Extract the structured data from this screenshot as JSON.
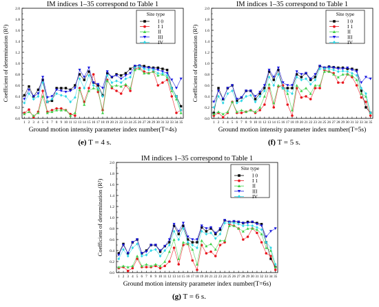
{
  "figure": {
    "panels": [
      {
        "id": "e",
        "caption_label": "(e)",
        "caption_text": "T = 4 s."
      },
      {
        "id": "f",
        "caption_label": "(f)",
        "caption_text": "T = 5 s."
      },
      {
        "id": "g",
        "caption_label": "(g)",
        "caption_text": "T = 6 s."
      }
    ]
  },
  "colors": {
    "I0": "#000000",
    "I1": "#e8141c",
    "II": "#3fd14a",
    "III": "#1414e0",
    "IV": "#2fd8e6"
  },
  "chart_data": [
    {
      "type": "line",
      "title": "IM indices 1–35 correspond to Table 1",
      "xlabel": "Ground motion intensity parameter index number(T=4s)",
      "ylabel": "Coefficient of determination (R²)",
      "xlim": [
        0.5,
        35.5
      ],
      "ylim": [
        0.0,
        2.0
      ],
      "x": [
        1,
        2,
        3,
        4,
        5,
        6,
        7,
        8,
        9,
        10,
        11,
        12,
        13,
        14,
        15,
        16,
        17,
        18,
        19,
        20,
        21,
        22,
        23,
        24,
        25,
        26,
        27,
        28,
        29,
        30,
        31,
        32,
        33,
        34,
        35
      ],
      "x_tick_labels": [
        "1",
        "2",
        "3",
        "4",
        "5",
        "6",
        "7",
        "8",
        "9",
        "10",
        "11",
        "12",
        "13",
        "14",
        "15",
        "16",
        "17",
        "18",
        "19",
        "20",
        "21",
        "22",
        "23",
        "24",
        "25",
        "26",
        "27",
        "28",
        "29",
        "30",
        "31",
        "32",
        "33",
        "34",
        "35"
      ],
      "y_ticks": [
        "0.0",
        "0.2",
        "0.4",
        "0.6",
        "0.8",
        "1.0",
        "1.2",
        "1.4",
        "1.6",
        "1.8",
        "2.0"
      ],
      "legend": {
        "title": "Site type",
        "position": "top-right"
      },
      "series": [
        {
          "name": "I 0",
          "color": "#000000",
          "marker": "square",
          "values": [
            0.42,
            0.58,
            0.4,
            0.52,
            0.7,
            0.3,
            0.32,
            0.55,
            0.55,
            0.55,
            0.52,
            0.6,
            0.8,
            0.7,
            0.85,
            0.65,
            0.6,
            0.42,
            0.82,
            0.75,
            0.8,
            0.78,
            0.82,
            0.9,
            0.95,
            0.96,
            0.95,
            0.93,
            0.92,
            0.92,
            0.9,
            0.88,
            0.55,
            0.4,
            0.22
          ]
        },
        {
          "name": "I 1",
          "color": "#e8141c",
          "marker": "circle",
          "values": [
            0.1,
            0.16,
            0.02,
            0.12,
            0.5,
            0.12,
            0.15,
            0.18,
            0.18,
            0.15,
            0.08,
            0.05,
            0.55,
            0.3,
            0.55,
            0.8,
            0.48,
            0.15,
            0.7,
            0.55,
            0.5,
            0.45,
            0.6,
            0.5,
            0.9,
            0.92,
            0.85,
            0.82,
            0.85,
            0.6,
            0.65,
            0.7,
            0.4,
            0.1,
            0.15
          ]
        },
        {
          "name": "II",
          "color": "#3fd14a",
          "marker": "triangle-up",
          "values": [
            0.08,
            0.12,
            0.05,
            0.1,
            0.4,
            0.1,
            0.12,
            0.15,
            0.15,
            0.15,
            0.05,
            0.1,
            0.52,
            0.25,
            0.5,
            0.55,
            0.52,
            0.1,
            0.68,
            0.58,
            0.6,
            0.58,
            0.62,
            0.55,
            0.88,
            0.9,
            0.82,
            0.82,
            0.85,
            0.78,
            0.8,
            0.75,
            0.5,
            0.35,
            0.1
          ]
        },
        {
          "name": "III",
          "color": "#1414e0",
          "marker": "triangle-down",
          "values": [
            0.35,
            0.52,
            0.4,
            0.45,
            0.75,
            0.38,
            0.4,
            0.52,
            0.5,
            0.48,
            0.5,
            0.55,
            0.88,
            0.75,
            0.92,
            0.65,
            0.62,
            0.55,
            0.85,
            0.75,
            0.78,
            0.72,
            0.78,
            0.82,
            0.95,
            0.96,
            0.92,
            0.92,
            0.9,
            0.88,
            0.85,
            0.82,
            0.7,
            0.55,
            0.72
          ]
        },
        {
          "name": "IV",
          "color": "#2fd8e6",
          "marker": "diamond",
          "values": [
            0.28,
            0.45,
            0.35,
            0.4,
            0.65,
            0.3,
            0.35,
            0.45,
            0.42,
            0.4,
            0.3,
            0.38,
            0.72,
            0.55,
            0.78,
            0.6,
            0.55,
            0.4,
            0.78,
            0.65,
            0.68,
            0.65,
            0.72,
            0.75,
            0.92,
            0.94,
            0.9,
            0.88,
            0.88,
            0.82,
            0.82,
            0.78,
            0.55,
            0.4,
            0.15
          ]
        }
      ]
    },
    {
      "type": "line",
      "title": "IM indices 1–35 correspond to Table 1",
      "xlabel": "Ground motion intensity parameter index number(T=5s)",
      "ylabel": "Coefficient of determination (R²)",
      "xlim": [
        0.5,
        35.5
      ],
      "ylim": [
        0.0,
        2.0
      ],
      "x": [
        1,
        2,
        3,
        4,
        5,
        6,
        7,
        8,
        9,
        10,
        11,
        12,
        13,
        14,
        15,
        16,
        17,
        18,
        19,
        20,
        21,
        22,
        23,
        24,
        25,
        26,
        27,
        28,
        29,
        30,
        31,
        32,
        33,
        34,
        35
      ],
      "x_tick_labels": [
        "1",
        "2",
        "3",
        "4",
        "5",
        "6",
        "7",
        "8",
        "9",
        "10",
        "11",
        "12",
        "13",
        "14",
        "15",
        "16",
        "17",
        "18",
        "19",
        "20",
        "21",
        "22",
        "23",
        "24",
        "25",
        "26",
        "27",
        "28",
        "29",
        "30",
        "31",
        "32",
        "33",
        "34",
        "35"
      ],
      "y_ticks": [
        "0.0",
        "0.2",
        "0.4",
        "0.6",
        "0.8",
        "1.0",
        "1.2",
        "1.4",
        "1.6",
        "1.8",
        "2.0"
      ],
      "legend": {
        "title": "Site type",
        "position": "top-right"
      },
      "series": [
        {
          "name": "I 0",
          "color": "#000000",
          "marker": "square",
          "values": [
            0.1,
            0.55,
            0.35,
            0.55,
            0.6,
            0.32,
            0.38,
            0.5,
            0.5,
            0.35,
            0.45,
            0.55,
            0.85,
            0.7,
            0.88,
            0.55,
            0.55,
            0.55,
            0.8,
            0.75,
            0.82,
            0.7,
            0.75,
            0.95,
            0.92,
            0.94,
            0.93,
            0.92,
            0.92,
            0.9,
            0.9,
            0.88,
            0.5,
            0.2,
            0.1
          ]
        },
        {
          "name": "I 1",
          "color": "#e8141c",
          "marker": "circle",
          "values": [
            0.05,
            0.1,
            0.02,
            0.1,
            0.3,
            0.1,
            0.1,
            0.12,
            0.15,
            0.1,
            0.15,
            0.25,
            0.55,
            0.2,
            0.58,
            0.6,
            0.25,
            0.05,
            0.55,
            0.38,
            0.4,
            0.35,
            0.55,
            0.55,
            0.88,
            0.85,
            0.82,
            0.65,
            0.65,
            0.8,
            0.75,
            0.6,
            0.38,
            0.3,
            0.05
          ]
        },
        {
          "name": "II",
          "color": "#3fd14a",
          "marker": "triangle-up",
          "values": [
            0.08,
            0.12,
            0.08,
            0.12,
            0.3,
            0.12,
            0.15,
            0.12,
            0.15,
            0.12,
            0.2,
            0.4,
            0.62,
            0.28,
            0.6,
            0.55,
            0.45,
            0.15,
            0.6,
            0.5,
            0.55,
            0.45,
            0.6,
            0.6,
            0.85,
            0.85,
            0.8,
            0.75,
            0.8,
            0.8,
            0.78,
            0.7,
            0.45,
            0.4,
            0.1
          ]
        },
        {
          "name": "III",
          "color": "#1414e0",
          "marker": "triangle-down",
          "values": [
            0.3,
            0.5,
            0.35,
            0.55,
            0.6,
            0.35,
            0.38,
            0.5,
            0.5,
            0.4,
            0.48,
            0.6,
            0.88,
            0.75,
            0.92,
            0.65,
            0.6,
            0.6,
            0.85,
            0.8,
            0.82,
            0.72,
            0.8,
            0.95,
            0.92,
            0.93,
            0.92,
            0.9,
            0.9,
            0.92,
            0.88,
            0.85,
            0.65,
            0.75,
            0.72
          ]
        },
        {
          "name": "IV",
          "color": "#2fd8e6",
          "marker": "diamond",
          "values": [
            0.2,
            0.4,
            0.28,
            0.45,
            0.5,
            0.28,
            0.32,
            0.4,
            0.42,
            0.3,
            0.4,
            0.5,
            0.75,
            0.6,
            0.8,
            0.55,
            0.5,
            0.45,
            0.75,
            0.7,
            0.72,
            0.62,
            0.7,
            0.9,
            0.9,
            0.9,
            0.88,
            0.85,
            0.86,
            0.85,
            0.82,
            0.78,
            0.55,
            0.45,
            0.1
          ]
        }
      ]
    },
    {
      "type": "line",
      "title": "IM indices 1–35 correspond to Table 1",
      "xlabel": "Ground motion intensity parameter index number(T=6s)",
      "ylabel": "Coefficient of determination (R²)",
      "xlim": [
        0.5,
        35.5
      ],
      "ylim": [
        0.0,
        2.0
      ],
      "x": [
        1,
        2,
        3,
        4,
        5,
        6,
        7,
        8,
        9,
        10,
        11,
        12,
        13,
        14,
        15,
        16,
        17,
        18,
        19,
        20,
        21,
        22,
        23,
        24,
        25,
        26,
        27,
        28,
        29,
        30,
        31,
        32,
        33,
        34,
        35
      ],
      "x_tick_labels": [
        "1",
        "2",
        "3",
        "4",
        "5",
        "6",
        "7",
        "8",
        "9",
        "10",
        "11",
        "12",
        "13",
        "14",
        "15",
        "16",
        "17",
        "18",
        "19",
        "20",
        "21",
        "22",
        "23",
        "24",
        "25",
        "26",
        "27",
        "28",
        "29",
        "30",
        "31",
        "32",
        "33",
        "34",
        "35"
      ],
      "y_ticks": [
        "0.0",
        "0.2",
        "0.4",
        "0.6",
        "0.8",
        "1.0",
        "1.2",
        "1.4",
        "1.6",
        "1.8",
        "2.0"
      ],
      "legend": {
        "title": "Site type",
        "position": "top-right"
      },
      "series": [
        {
          "name": "I 0",
          "color": "#000000",
          "marker": "square",
          "values": [
            0.35,
            0.52,
            0.35,
            0.55,
            0.6,
            0.35,
            0.4,
            0.5,
            0.5,
            0.38,
            0.48,
            0.55,
            0.85,
            0.7,
            0.85,
            0.6,
            0.55,
            0.55,
            0.82,
            0.75,
            0.8,
            0.7,
            0.78,
            0.95,
            0.92,
            0.93,
            0.92,
            0.9,
            0.92,
            0.92,
            0.9,
            0.88,
            0.55,
            0.25,
            0.1
          ]
        },
        {
          "name": "I 1",
          "color": "#e8141c",
          "marker": "circle",
          "values": [
            0.08,
            0.1,
            0.03,
            0.08,
            0.25,
            0.1,
            0.1,
            0.1,
            0.12,
            0.08,
            0.12,
            0.2,
            0.45,
            0.15,
            0.5,
            0.52,
            0.22,
            0.05,
            0.5,
            0.35,
            0.38,
            0.3,
            0.5,
            0.55,
            0.88,
            0.85,
            0.8,
            0.6,
            0.65,
            0.8,
            0.72,
            0.55,
            0.35,
            0.3,
            0.05
          ]
        },
        {
          "name": "II",
          "color": "#3fd14a",
          "marker": "triangle-up",
          "values": [
            0.1,
            0.12,
            0.1,
            0.12,
            0.3,
            0.12,
            0.15,
            0.12,
            0.15,
            0.12,
            0.2,
            0.38,
            0.6,
            0.25,
            0.55,
            0.52,
            0.42,
            0.15,
            0.58,
            0.48,
            0.52,
            0.42,
            0.58,
            0.58,
            0.85,
            0.85,
            0.8,
            0.75,
            0.8,
            0.8,
            0.78,
            0.7,
            0.45,
            0.4,
            0.1
          ]
        },
        {
          "name": "III",
          "color": "#1414e0",
          "marker": "triangle-down",
          "values": [
            0.32,
            0.5,
            0.35,
            0.55,
            0.6,
            0.35,
            0.38,
            0.5,
            0.5,
            0.4,
            0.48,
            0.6,
            0.88,
            0.75,
            0.9,
            0.65,
            0.6,
            0.6,
            0.85,
            0.8,
            0.82,
            0.72,
            0.8,
            0.95,
            0.92,
            0.93,
            0.92,
            0.9,
            0.9,
            0.92,
            0.88,
            0.85,
            0.65,
            0.75,
            0.8
          ]
        },
        {
          "name": "IV",
          "color": "#2fd8e6",
          "marker": "diamond",
          "values": [
            0.25,
            0.42,
            0.3,
            0.45,
            0.52,
            0.3,
            0.32,
            0.4,
            0.42,
            0.3,
            0.4,
            0.5,
            0.75,
            0.6,
            0.8,
            0.55,
            0.5,
            0.45,
            0.75,
            0.7,
            0.72,
            0.62,
            0.7,
            0.9,
            0.9,
            0.9,
            0.88,
            0.85,
            0.86,
            0.85,
            0.82,
            0.78,
            0.55,
            0.45,
            0.15
          ]
        }
      ]
    }
  ]
}
